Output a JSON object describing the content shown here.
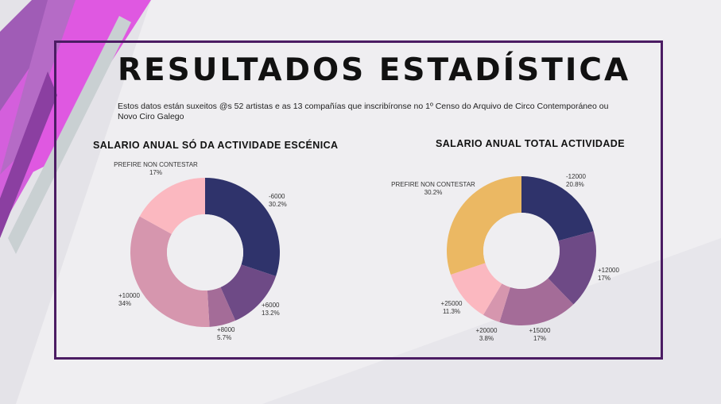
{
  "header": {
    "title": "RESULTADOS  ESTADÍSTICA",
    "subtitle": "Estos datos están suxeitos @s 52 artistas e as 13 compañías que  inscribíronse no 1º Censo do Arquivo de Circo Contemporáneo ou Novo Ciro Galego"
  },
  "chart_data": [
    {
      "type": "pie",
      "title": "SALARIO ANUAL SÓ DA ACTIVIDADE ESCÉNICA",
      "labels": [
        "-6000",
        "+6000",
        "+8000",
        "+10000",
        "PREFIRE NON CONTESTAR"
      ],
      "values": [
        30.2,
        13.2,
        5.7,
        34,
        17
      ],
      "value_labels": [
        "30.2%",
        "13.2%",
        "5.7%",
        "34%",
        "17%"
      ],
      "colors": [
        "#2f336b",
        "#6e4a86",
        "#a46c98",
        "#d696ae",
        "#fbb8c0"
      ],
      "donut": true
    },
    {
      "type": "pie",
      "title": "SALARIO ANUAL TOTAL ACTIVIDADE",
      "labels": [
        "-12000",
        "+12000",
        "+15000",
        "+20000",
        "+25000",
        "PREFIRE NON CONTESTAR"
      ],
      "values": [
        20.8,
        17,
        17,
        3.8,
        11.3,
        30.2
      ],
      "value_labels": [
        "20.8%",
        "17%",
        "17%",
        "3.8%",
        "11.3%",
        "30.2%"
      ],
      "colors": [
        "#2f336b",
        "#6e4a86",
        "#a46c98",
        "#d696ae",
        "#fbb8c0",
        "#ebb863"
      ],
      "donut": true
    }
  ]
}
